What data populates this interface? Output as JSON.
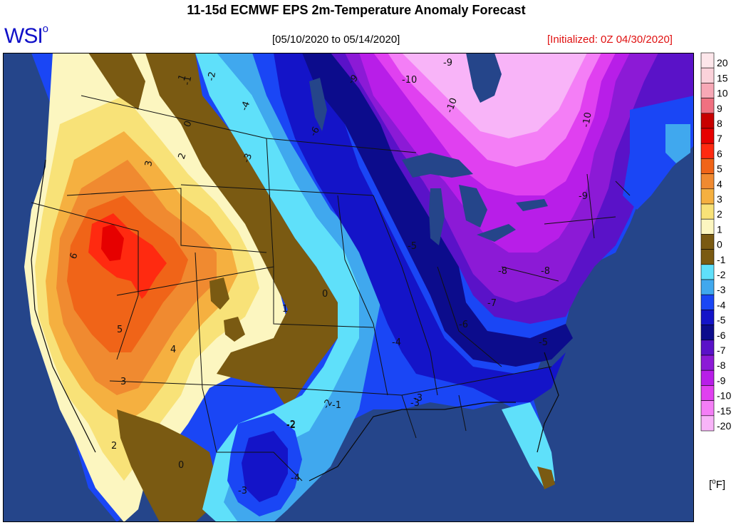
{
  "header": {
    "title": "11-15d ECMWF EPS 2m-Temperature Anomaly Forecast",
    "logo_text": "WSI",
    "logo_degree": "o",
    "date_range": "[05/10/2020 to 05/14/2020]",
    "initialized": "[Initialized: 0Z 04/30/2020]"
  },
  "legend": {
    "unit_prefix": "[",
    "unit_degree": "o",
    "unit_suffix": "F]",
    "items": [
      {
        "label": "20",
        "color": "#fde6ea"
      },
      {
        "label": "15",
        "color": "#fbd2da"
      },
      {
        "label": "10",
        "color": "#f7a8b6"
      },
      {
        "label": "9",
        "color": "#f07080"
      },
      {
        "label": "8",
        "color": "#c80000"
      },
      {
        "label": "7",
        "color": "#e60000"
      },
      {
        "label": "6",
        "color": "#ff2a10"
      },
      {
        "label": "5",
        "color": "#f06418"
      },
      {
        "label": "4",
        "color": "#f08a30"
      },
      {
        "label": "3",
        "color": "#f5b040"
      },
      {
        "label": "2",
        "color": "#f8e278"
      },
      {
        "label": "1",
        "color": "#fcf6c0"
      },
      {
        "label": "0",
        "color": "#7a5a12"
      },
      {
        "label": "-1",
        "color": "#7a5a12"
      },
      {
        "label": "-2",
        "color": "#5fe0fa"
      },
      {
        "label": "-3",
        "color": "#40a8ee"
      },
      {
        "label": "-4",
        "color": "#1a46f5"
      },
      {
        "label": "-5",
        "color": "#1414c8"
      },
      {
        "label": "-6",
        "color": "#0c0c8c"
      },
      {
        "label": "-7",
        "color": "#5a12c8"
      },
      {
        "label": "-8",
        "color": "#8c1ad6"
      },
      {
        "label": "-9",
        "color": "#b81ee8"
      },
      {
        "label": "-10",
        "color": "#e040f0"
      },
      {
        "label": "-15",
        "color": "#f47ef6"
      },
      {
        "label": "-20",
        "color": "#f8b4f8"
      }
    ]
  },
  "map": {
    "ocean_color": "#25458a",
    "land_outside_color": "#22407f",
    "contour_labels": [
      "-10",
      "-10",
      "-10",
      "-9",
      "-9",
      "-9",
      "-8",
      "-8",
      "-7",
      "-6",
      "-6",
      "-5",
      "-5",
      "-4",
      "-4",
      "-4",
      "-3",
      "-3",
      "-3",
      "-2",
      "-2",
      "-2",
      "-1",
      "-1",
      "0",
      "0",
      "0",
      "1",
      "1",
      "2",
      "2",
      "3",
      "3",
      "4",
      "5",
      "6",
      "-3",
      "-2"
    ]
  }
}
